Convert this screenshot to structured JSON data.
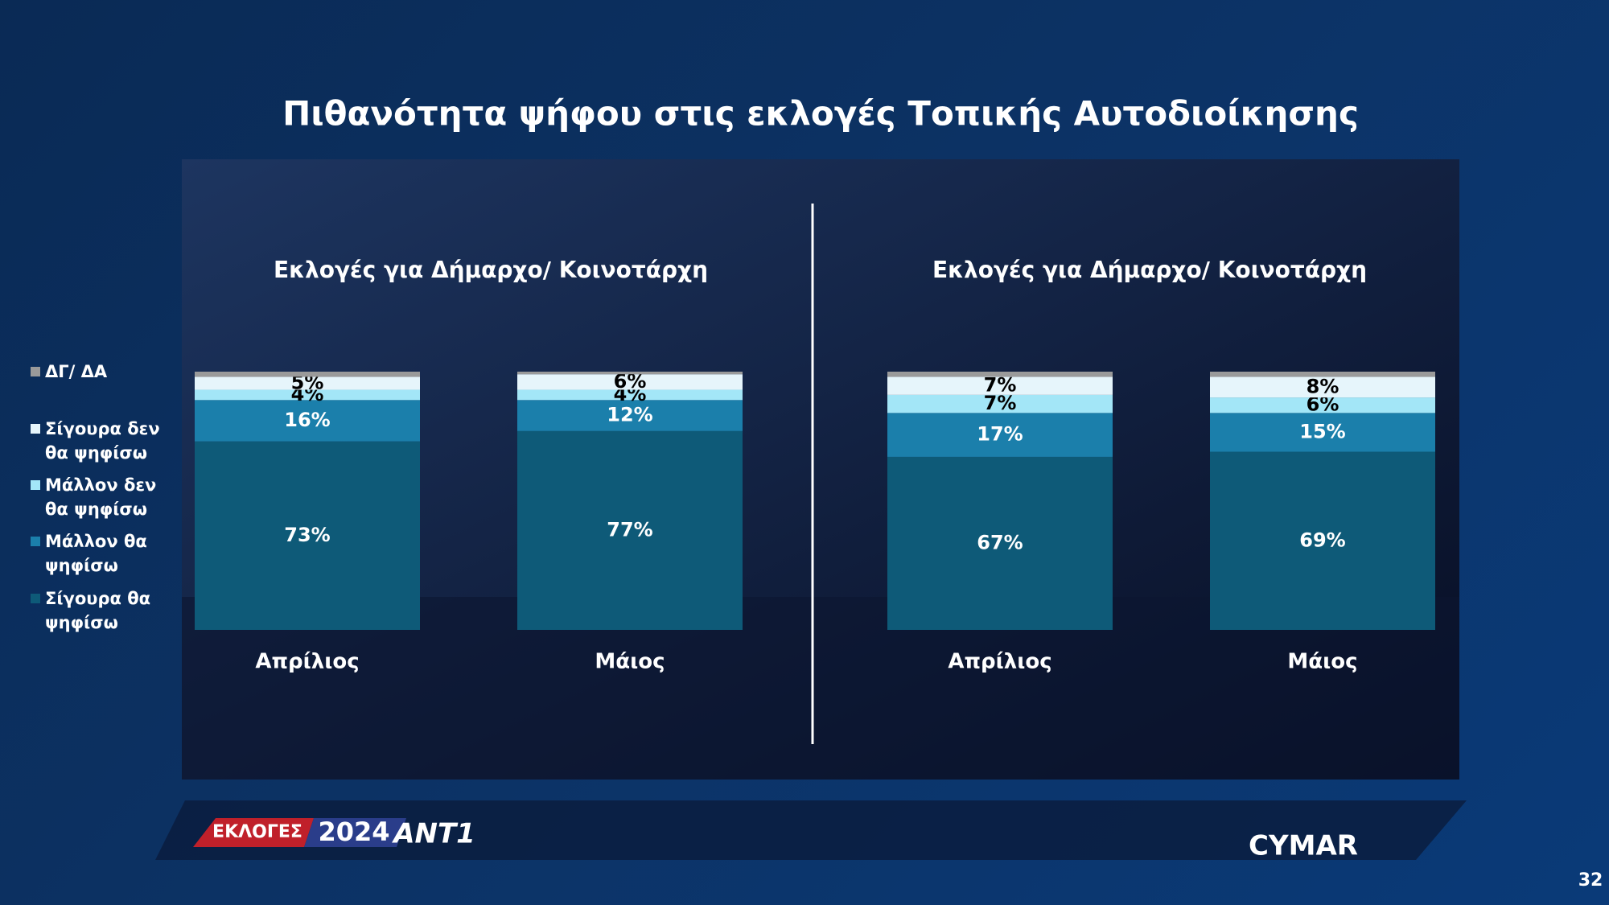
{
  "title": "Πιθανότητα ψήφου στις εκλογές Τοπικής Αυτοδιοίκησης",
  "footer": {
    "label": "ΕΚΛΟΓΕΣ",
    "year": "2024",
    "channel": "ANT1",
    "brand": "CYMAR"
  },
  "page_number": "32",
  "chart_data": [
    {
      "type": "bar",
      "stacked": true,
      "title": "Εκλογές για Δήμαρχο/ Κοινοτάρχη",
      "categories": [
        "Απρίλιος",
        "Μάιος"
      ],
      "ylim": [
        0,
        100
      ],
      "series": [
        {
          "name": "Σίγουρα θα ψηφίσω",
          "color": "#0e5a78",
          "values": [
            73,
            77
          ],
          "value_labels": [
            "73%",
            "77%"
          ]
        },
        {
          "name": "Μάλλον θα ψηφίσω",
          "color": "#1b7fab",
          "values": [
            16,
            12
          ],
          "value_labels": [
            "16%",
            "12%"
          ]
        },
        {
          "name": "Μάλλον δεν θα ψηφίσω",
          "color": "#a3e6f7",
          "values": [
            4,
            4
          ],
          "value_labels": [
            "4%",
            "4%"
          ]
        },
        {
          "name": "Σίγουρα δεν θα ψηφίσω",
          "color": "#e6f5fb",
          "values": [
            5,
            6
          ],
          "value_labels": [
            "5%",
            "6%"
          ]
        },
        {
          "name": "ΔΓ/ ΔΑ",
          "color": "#9a9a9a",
          "values": [
            2,
            1
          ]
        }
      ]
    },
    {
      "type": "bar",
      "stacked": true,
      "title": "Εκλογές για Δήμαρχο/ Κοινοτάρχη",
      "categories": [
        "Απρίλιος",
        "Μάιος"
      ],
      "ylim": [
        0,
        100
      ],
      "series": [
        {
          "color": "#0e5a78",
          "values": [
            67,
            69
          ],
          "value_labels": [
            "67%",
            "69%"
          ]
        },
        {
          "color": "#1b7fab",
          "values": [
            17,
            15
          ],
          "value_labels": [
            "17%",
            "15%"
          ]
        },
        {
          "color": "#a3e6f7",
          "values": [
            7,
            6
          ],
          "value_labels": [
            "7%",
            "6%"
          ]
        },
        {
          "color": "#e6f5fb",
          "values": [
            7,
            8
          ],
          "value_labels": [
            "7%",
            "8%"
          ]
        },
        {
          "color": "#9a9a9a",
          "values": [
            2,
            2
          ]
        }
      ]
    }
  ]
}
